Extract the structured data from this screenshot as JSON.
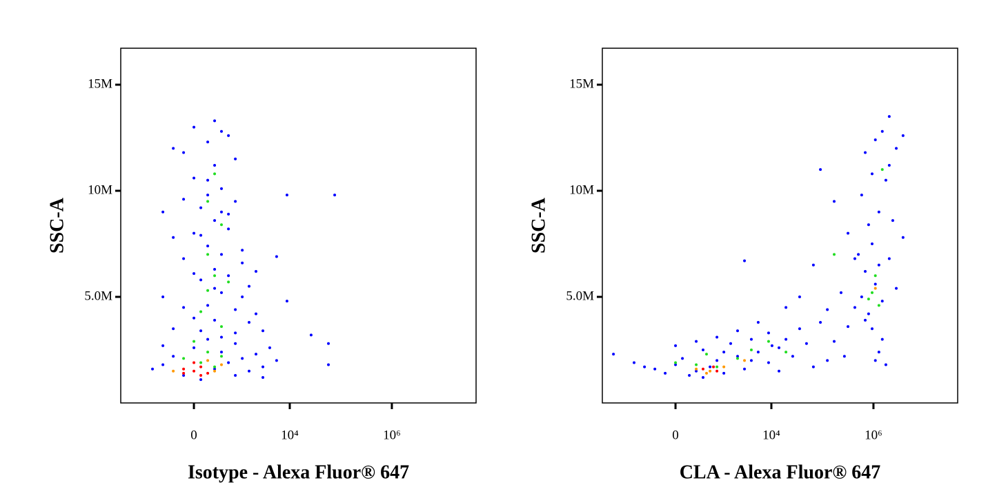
{
  "chart_data": [
    {
      "type": "scatter",
      "xlabel": "Isotype - Alexa Fluor® 647",
      "ylabel": "SSC-A",
      "xscale": "biex",
      "xlim": [
        -3590,
        44650000
      ],
      "ylim": [
        0,
        16720000
      ],
      "xticks": [
        {
          "value": 0,
          "label": "0"
        },
        {
          "value": 10000,
          "label": "10⁴"
        },
        {
          "value": 1000000,
          "label": "10⁶"
        }
      ],
      "yticks": [
        {
          "value": 5000000,
          "label": "5.0M"
        },
        {
          "value": 10000000,
          "label": "10M"
        },
        {
          "value": 15000000,
          "label": "15M"
        }
      ],
      "series": [
        {
          "color": "#0000ff",
          "x": [
            -504,
            -284,
            -128,
            0,
            84,
            176,
            285,
            421,
            601,
            838,
            1158,
            1585,
            2170,
            2970,
            -284,
            0,
            176,
            421,
            838,
            84,
            285,
            601,
            -128,
            176,
            421,
            0,
            285,
            601,
            84,
            176,
            421,
            838,
            0,
            285,
            -128,
            176,
            421,
            0,
            285,
            -504,
            -284,
            1158,
            1585,
            2170,
            2970,
            4050,
            1158,
            -504,
            -284,
            838,
            601,
            -128,
            84,
            285,
            838,
            -838,
            -504,
            5520,
            1585,
            421,
            176,
            84,
            601,
            0,
            285,
            -128,
            1158,
            2170,
            421,
            838,
            8820,
            75800,
            8820,
            26200,
            57200,
            57200,
            5520,
            2970
          ],
          "y": [
            1800000,
            2200000,
            1300000,
            2600000,
            1100000,
            3000000,
            1600000,
            2400000,
            1900000,
            2800000,
            2100000,
            1500000,
            2300000,
            1700000,
            3500000,
            4000000,
            4600000,
            5200000,
            4400000,
            5800000,
            6300000,
            6000000,
            6800000,
            7400000,
            7000000,
            8000000,
            8600000,
            8200000,
            9200000,
            9800000,
            10100000,
            9500000,
            10600000,
            11200000,
            11800000,
            12300000,
            12800000,
            13000000,
            13300000,
            9000000,
            7800000,
            7200000,
            5500000,
            4200000,
            3400000,
            2600000,
            6600000,
            5000000,
            12000000,
            11500000,
            12600000,
            9600000,
            3400000,
            3900000,
            3300000,
            1600000,
            2700000,
            2000000,
            3800000,
            9000000,
            10500000,
            7900000,
            8900000,
            6100000,
            5400000,
            4500000,
            5000000,
            6200000,
            3100000,
            1300000,
            9800000,
            9800000,
            4800000,
            3200000,
            2800000,
            1800000,
            6900000,
            1200000
          ]
        },
        {
          "color": "#22dd22",
          "x": [
            84,
            176,
            285,
            0,
            421,
            176,
            285,
            421,
            176,
            285,
            84,
            601,
            176,
            -128,
            421
          ],
          "y": [
            1900000,
            2400000,
            1700000,
            2900000,
            2200000,
            5300000,
            6000000,
            8400000,
            9500000,
            10800000,
            4300000,
            5700000,
            7000000,
            2100000,
            3600000
          ]
        },
        {
          "color": "#ff9900",
          "x": [
            285,
            176,
            -284,
            421
          ],
          "y": [
            1500000,
            2000000,
            1500000,
            1800000
          ]
        },
        {
          "color": "#ff0000",
          "x": [
            0,
            84,
            -128,
            176,
            84,
            0,
            -128
          ],
          "y": [
            1500000,
            1700000,
            1600000,
            1400000,
            1300000,
            1900000,
            1400000
          ]
        }
      ]
    },
    {
      "type": "scatter",
      "xlabel": "CLA - Alexa Fluor® 647",
      "ylabel": "SSC-A",
      "xscale": "biex",
      "xlim": [
        -3590,
        44650000
      ],
      "ylim": [
        0,
        16720000
      ],
      "xticks": [
        {
          "value": 0,
          "label": "0"
        },
        {
          "value": 10000,
          "label": "10⁴"
        },
        {
          "value": 1000000,
          "label": "10⁶"
        }
      ],
      "yticks": [
        {
          "value": 5000000,
          "label": "5.0M"
        },
        {
          "value": 10000000,
          "label": "10M"
        },
        {
          "value": 15000000,
          "label": "15M"
        }
      ],
      "series": [
        {
          "color": "#0000ff",
          "x": [
            -2170,
            -838,
            -284,
            -128,
            0,
            84,
            176,
            285,
            421,
            601,
            838,
            1158,
            1585,
            2170,
            2970,
            4050,
            5520,
            8820,
            8820,
            14100,
            14100,
            19300,
            26200,
            35800,
            48800,
            66600,
            91400,
            125000,
            170000,
            232000,
            317000,
            432000,
            317000,
            170000,
            91400,
            66600,
            35800,
            19300,
            2970,
            5520,
            2170,
            838,
            285,
            0,
            -504,
            588000,
            690000,
            803000,
            941000,
            1090000,
            1280000,
            1490000,
            1750000,
            2040000,
            941000,
            1280000,
            1750000,
            690000,
            1090000,
            1490000,
            2040000,
            2390000,
            2800000,
            803000,
            588000,
            432000,
            1490000,
            1090000,
            2800000,
            2040000,
            3800000,
            3800000,
            506000,
            941000,
            1280000,
            690000,
            270000,
            125000,
            421,
            1158,
            4050,
            10300
          ],
          "y": [
            2300000,
            1900000,
            1600000,
            1400000,
            1800000,
            2100000,
            1300000,
            1500000,
            2500000,
            1700000,
            2000000,
            1400000,
            2800000,
            2200000,
            1600000,
            3000000,
            2400000,
            1900000,
            3300000,
            2600000,
            1500000,
            3000000,
            2200000,
            3500000,
            2800000,
            1700000,
            3800000,
            4400000,
            2900000,
            5200000,
            3600000,
            6800000,
            8000000,
            9500000,
            11000000,
            6500000,
            5000000,
            4500000,
            6700000,
            3800000,
            3400000,
            3100000,
            2900000,
            2700000,
            1700000,
            5000000,
            6200000,
            4200000,
            7500000,
            5600000,
            9000000,
            4800000,
            10500000,
            6800000,
            3500000,
            2400000,
            1800000,
            11800000,
            12400000,
            12800000,
            11200000,
            8600000,
            5400000,
            8400000,
            9800000,
            4500000,
            3000000,
            2000000,
            12000000,
            13500000,
            12600000,
            7800000,
            7000000,
            10800000,
            6500000,
            3900000,
            2200000,
            2000000,
            1200000,
            2400000,
            2000000,
            2700000
          ]
        },
        {
          "color": "#22dd22",
          "x": [
            285,
            838,
            2170,
            4050,
            8820,
            19300,
            941000,
            1090000,
            803000,
            1280000,
            1490000,
            170000,
            0,
            504
          ],
          "y": [
            1800000,
            1700000,
            2100000,
            2500000,
            2900000,
            2400000,
            5200000,
            6000000,
            4900000,
            4600000,
            11000000,
            7000000,
            1900000,
            2300000
          ]
        },
        {
          "color": "#ff9900",
          "x": [
            285,
            601,
            1158,
            2970,
            1090000,
            504
          ],
          "y": [
            1600000,
            1500000,
            1700000,
            2000000,
            5400000,
            1400000
          ]
        },
        {
          "color": "#ff0000",
          "x": [
            421,
            838,
            710
          ],
          "y": [
            1600000,
            1500000,
            1700000
          ]
        }
      ]
    }
  ]
}
